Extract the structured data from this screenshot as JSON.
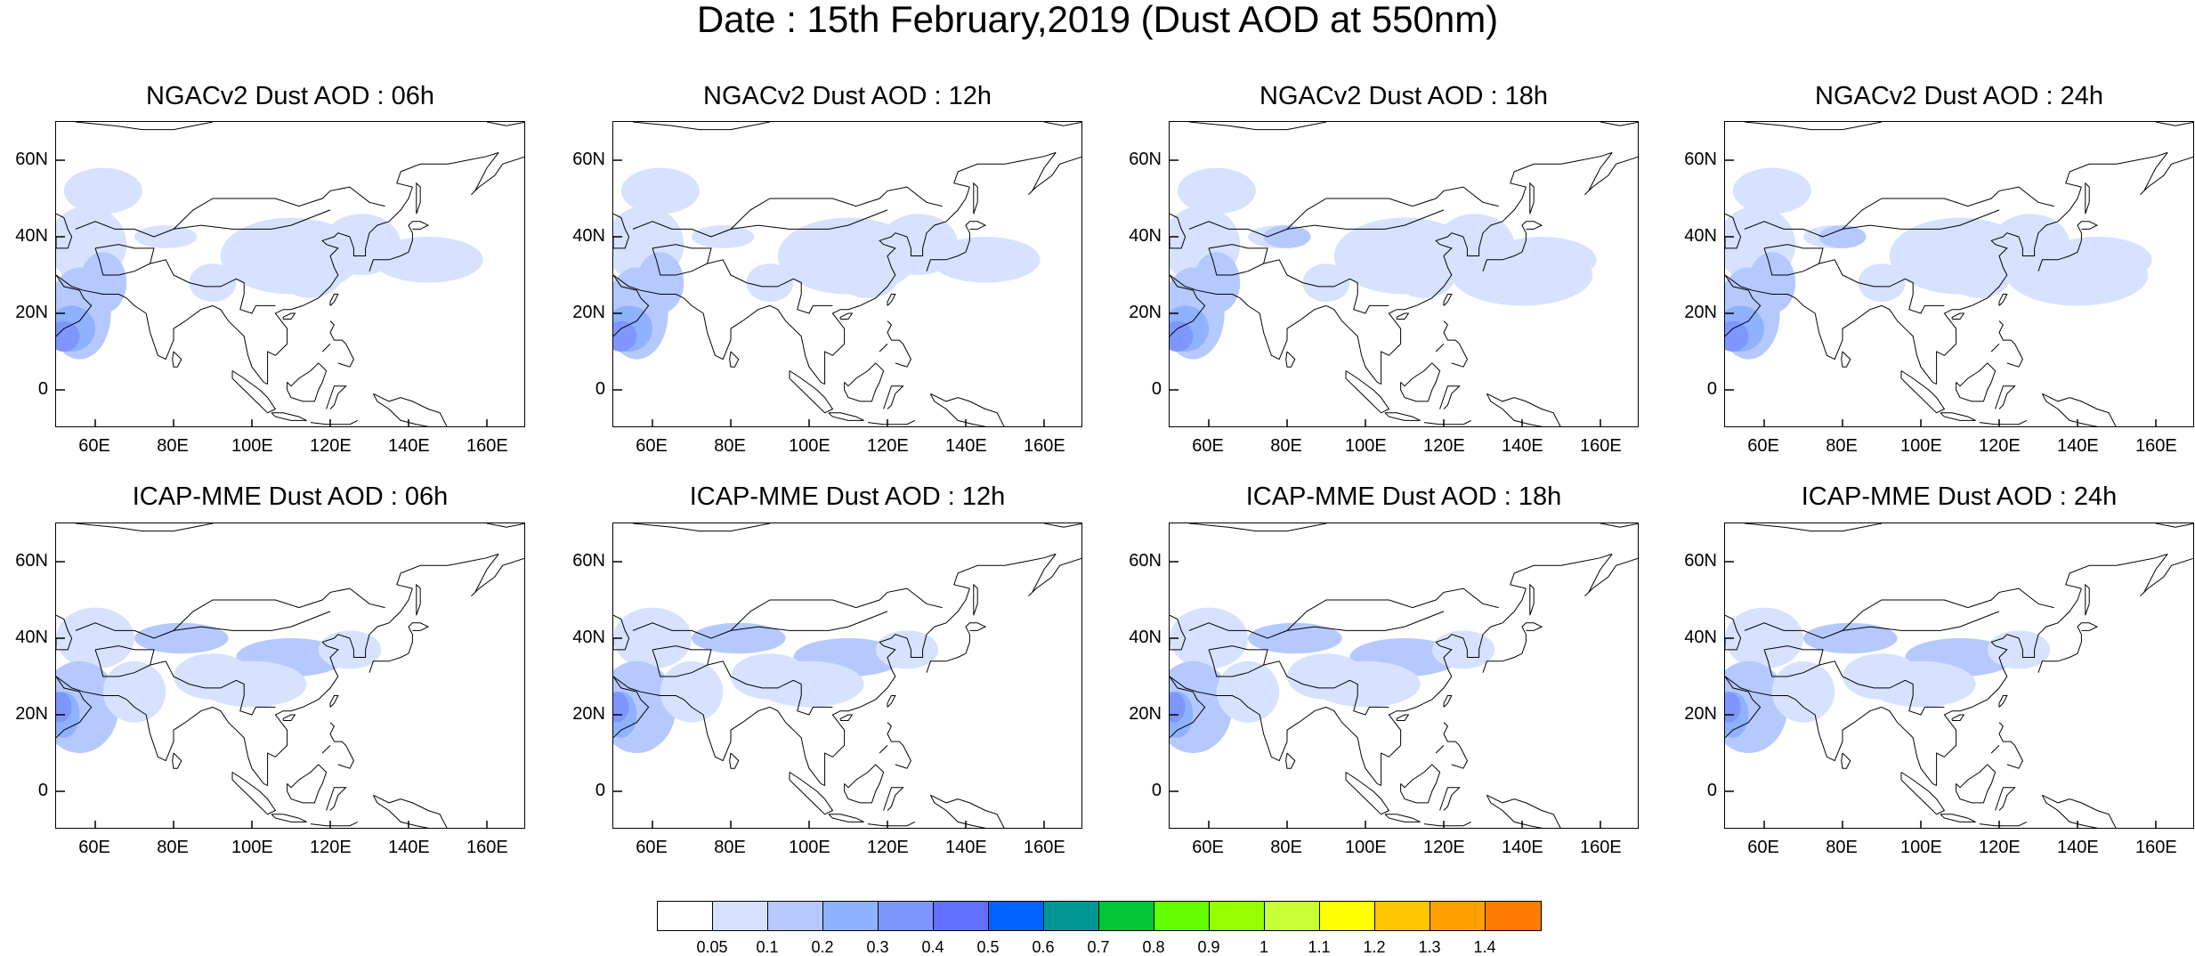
{
  "title": "Date : 15th February,2019 (Dust AOD at 550nm)",
  "panels": [
    {
      "title": "NGACv2 Dust AOD : 06h",
      "model": "NGACv2",
      "lead": "06h"
    },
    {
      "title": "NGACv2 Dust AOD : 12h",
      "model": "NGACv2",
      "lead": "12h"
    },
    {
      "title": "NGACv2 Dust AOD : 18h",
      "model": "NGACv2",
      "lead": "18h"
    },
    {
      "title": "NGACv2 Dust AOD : 24h",
      "model": "NGACv2",
      "lead": "24h"
    },
    {
      "title": "ICAP-MME Dust AOD : 06h",
      "model": "ICAP-MME",
      "lead": "06h"
    },
    {
      "title": "ICAP-MME Dust AOD : 12h",
      "model": "ICAP-MME",
      "lead": "12h"
    },
    {
      "title": "ICAP-MME Dust AOD : 18h",
      "model": "ICAP-MME",
      "lead": "18h"
    },
    {
      "title": "ICAP-MME Dust AOD : 24h",
      "model": "ICAP-MME",
      "lead": "24h"
    }
  ],
  "axes": {
    "lon_range": [
      50,
      170
    ],
    "lat_range": [
      -10,
      70
    ],
    "lon_ticks": [
      "60E",
      "80E",
      "100E",
      "120E",
      "140E",
      "160E"
    ],
    "lon_tick_values": [
      60,
      80,
      100,
      120,
      140,
      160
    ],
    "lat_ticks": [
      "60N",
      "40N",
      "20N",
      "0"
    ],
    "lat_tick_values": [
      60,
      40,
      20,
      0
    ]
  },
  "colorbar": {
    "labels": [
      "0.05",
      "0.1",
      "0.2",
      "0.3",
      "0.4",
      "0.5",
      "0.6",
      "0.7",
      "0.8",
      "0.9",
      "1",
      "1.1",
      "1.2",
      "1.3",
      "1.4"
    ],
    "colors": [
      "#ffffff",
      "#d6e2ff",
      "#b5c9ff",
      "#8eb2ff",
      "#7f96ff",
      "#6370ff",
      "#0063ff",
      "#009696",
      "#00c633",
      "#63ff00",
      "#96ff00",
      "#c6ff33",
      "#ffff00",
      "#ffc600",
      "#ffa000",
      "#ff7c00",
      "#ff1900"
    ],
    "colors_shown_count": 16
  }
}
